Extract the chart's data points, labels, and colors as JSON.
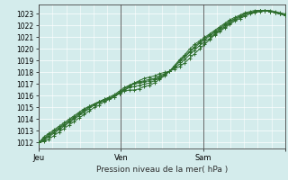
{
  "title": "",
  "xlabel": "Pression niveau de la mer( hPa )",
  "ylabel": "",
  "ylim": [
    1011.5,
    1023.8
  ],
  "yticks": [
    1012,
    1013,
    1014,
    1015,
    1016,
    1017,
    1018,
    1019,
    1020,
    1021,
    1022,
    1023
  ],
  "xlim": [
    0,
    72
  ],
  "xtick_positions": [
    0,
    24,
    48,
    72
  ],
  "xtick_labels": [
    "Jeu",
    "Ven",
    "Sam",
    ""
  ],
  "vline_positions": [
    0,
    24,
    48
  ],
  "bg_color": "#d4ecec",
  "grid_color": "#ffffff",
  "line_color": "#2d6e2d",
  "marker": "+",
  "line_width": 0.7,
  "series": [
    [
      1012.0,
      1012.1,
      1012.3,
      1012.6,
      1012.9,
      1013.2,
      1013.5,
      1013.8,
      1014.1,
      1014.4,
      1014.7,
      1015.0,
      1015.2,
      1015.5,
      1015.7,
      1015.9,
      1016.2,
      1016.5,
      1016.8,
      1017.1,
      1017.3,
      1017.5,
      1017.6,
      1017.7,
      1017.9,
      1018.0,
      1018.1,
      1018.3,
      1018.5,
      1018.8,
      1019.2,
      1019.6,
      1020.0,
      1020.4,
      1020.8,
      1021.2,
      1021.5,
      1021.8,
      1022.1,
      1022.4,
      1022.6,
      1022.8,
      1023.0,
      1023.1,
      1023.2,
      1023.3,
      1023.3,
      1023.2,
      1023.1,
      1023.0
    ],
    [
      1012.0,
      1012.2,
      1012.5,
      1012.8,
      1013.1,
      1013.4,
      1013.7,
      1014.0,
      1014.3,
      1014.6,
      1014.9,
      1015.2,
      1015.4,
      1015.6,
      1015.8,
      1016.0,
      1016.3,
      1016.6,
      1016.9,
      1017.1,
      1017.2,
      1017.3,
      1017.4,
      1017.5,
      1017.7,
      1017.9,
      1018.1,
      1018.4,
      1018.7,
      1019.1,
      1019.5,
      1019.9,
      1020.3,
      1020.6,
      1020.9,
      1021.3,
      1021.6,
      1021.9,
      1022.2,
      1022.5,
      1022.7,
      1022.9,
      1023.1,
      1023.2,
      1023.3,
      1023.3,
      1023.2,
      1023.1,
      1023.0,
      1022.9
    ],
    [
      1012.0,
      1012.3,
      1012.6,
      1012.9,
      1013.2,
      1013.5,
      1013.8,
      1014.1,
      1014.4,
      1014.7,
      1015.0,
      1015.3,
      1015.5,
      1015.7,
      1015.9,
      1016.1,
      1016.4,
      1016.7,
      1016.9,
      1017.0,
      1017.1,
      1017.2,
      1017.3,
      1017.4,
      1017.6,
      1017.8,
      1018.1,
      1018.5,
      1018.9,
      1019.3,
      1019.7,
      1020.1,
      1020.5,
      1020.8,
      1021.1,
      1021.4,
      1021.7,
      1022.0,
      1022.3,
      1022.6,
      1022.8,
      1023.0,
      1023.1,
      1023.2,
      1023.3,
      1023.3,
      1023.2,
      1023.1,
      1023.0,
      1022.9
    ],
    [
      1012.0,
      1012.4,
      1012.7,
      1013.0,
      1013.3,
      1013.6,
      1013.9,
      1014.2,
      1014.5,
      1014.8,
      1015.1,
      1015.3,
      1015.5,
      1015.7,
      1015.8,
      1016.0,
      1016.3,
      1016.5,
      1016.7,
      1016.8,
      1016.9,
      1017.0,
      1017.1,
      1017.3,
      1017.5,
      1017.8,
      1018.1,
      1018.5,
      1019.0,
      1019.4,
      1019.8,
      1020.2,
      1020.6,
      1020.9,
      1021.2,
      1021.5,
      1021.8,
      1022.1,
      1022.4,
      1022.6,
      1022.8,
      1023.0,
      1023.1,
      1023.2,
      1023.3,
      1023.3,
      1023.2,
      1023.1,
      1023.0,
      1022.9
    ],
    [
      1012.0,
      1012.5,
      1012.8,
      1013.1,
      1013.4,
      1013.7,
      1014.0,
      1014.3,
      1014.6,
      1014.9,
      1015.1,
      1015.3,
      1015.5,
      1015.6,
      1015.7,
      1015.9,
      1016.2,
      1016.4,
      1016.5,
      1016.5,
      1016.6,
      1016.8,
      1016.9,
      1017.1,
      1017.4,
      1017.7,
      1018.1,
      1018.6,
      1019.1,
      1019.5,
      1020.0,
      1020.4,
      1020.7,
      1021.0,
      1021.3,
      1021.6,
      1021.9,
      1022.2,
      1022.5,
      1022.7,
      1022.9,
      1023.1,
      1023.2,
      1023.3,
      1023.3,
      1023.3,
      1023.2,
      1023.1,
      1023.0,
      1022.9
    ]
  ]
}
